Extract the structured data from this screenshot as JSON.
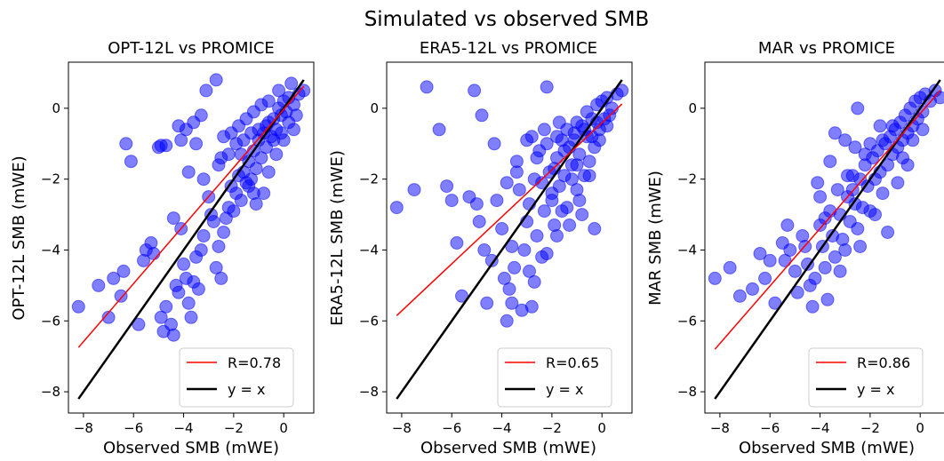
{
  "figure": {
    "suptitle": "Simulated vs observed SMB",
    "colors": {
      "points": "#0000ff",
      "fit_line": "#ff0000",
      "identity_line": "#000000"
    }
  },
  "chart_data": [
    {
      "type": "scatter",
      "title": "OPT-12L vs PROMICE",
      "xlabel": "Observed SMB (mWE)",
      "ylabel": "OPT-12L SMB (mWE)",
      "xlim": [
        -8.6,
        1.2
      ],
      "ylim": [
        -8.6,
        1.3
      ],
      "xticks": [
        -8,
        -6,
        -4,
        -2,
        0
      ],
      "yticks": [
        -8,
        -6,
        -4,
        -2,
        0
      ],
      "legend_position": "lower-right",
      "series": [
        {
          "name": "R=0.78",
          "kind": "line",
          "x": [
            -8.2,
            0.8
          ],
          "y": [
            -6.75,
            0.62
          ]
        },
        {
          "name": "y = x",
          "kind": "line",
          "x": [
            -8.2,
            0.8
          ],
          "y": [
            -8.2,
            0.8
          ]
        }
      ],
      "points": [
        [
          -8.2,
          -5.6
        ],
        [
          -7.4,
          -5.0
        ],
        [
          -7.0,
          -5.9
        ],
        [
          -6.8,
          -4.8
        ],
        [
          -6.5,
          -5.3
        ],
        [
          -6.4,
          -4.6
        ],
        [
          -6.3,
          -1.0
        ],
        [
          -6.1,
          -1.5
        ],
        [
          -5.8,
          -6.1
        ],
        [
          -5.6,
          -4.3
        ],
        [
          -5.5,
          -4.0
        ],
        [
          -5.3,
          -3.8
        ],
        [
          -5.2,
          -4.1
        ],
        [
          -5.0,
          -1.1
        ],
        [
          -4.9,
          -1.05
        ],
        [
          -4.7,
          -1.05
        ],
        [
          -4.9,
          -5.9
        ],
        [
          -4.8,
          -6.3
        ],
        [
          -4.7,
          -5.6
        ],
        [
          -4.5,
          -6.1
        ],
        [
          -4.4,
          -6.4
        ],
        [
          -4.3,
          -5.0
        ],
        [
          -4.2,
          -5.2
        ],
        [
          -4.1,
          -3.4
        ],
        [
          -4.0,
          -4.4
        ],
        [
          -3.9,
          -4.8
        ],
        [
          -3.8,
          -5.5
        ],
        [
          -3.7,
          -5.9
        ],
        [
          -3.6,
          -4.9
        ],
        [
          -3.5,
          -4.2
        ],
        [
          -3.4,
          -5.1
        ],
        [
          -3.3,
          -4.0
        ],
        [
          -3.2,
          -3.6
        ],
        [
          -3.0,
          -2.5
        ],
        [
          -2.9,
          -3.0
        ],
        [
          -2.8,
          -3.2
        ],
        [
          -2.7,
          -4.5
        ],
        [
          -2.6,
          -3.9
        ],
        [
          -2.5,
          -4.8
        ],
        [
          -2.4,
          -3.5
        ],
        [
          -2.3,
          -3.1
        ],
        [
          -2.2,
          -2.8
        ],
        [
          -2.1,
          -2.2
        ],
        [
          -2.0,
          -2.9
        ],
        [
          -1.9,
          -2.4
        ],
        [
          -1.8,
          -1.9
        ],
        [
          -1.7,
          -2.6
        ],
        [
          -1.6,
          -1.8
        ],
        [
          -1.5,
          -2.1
        ],
        [
          -1.4,
          -1.5
        ],
        [
          -1.3,
          -2.0
        ],
        [
          -1.2,
          -1.2
        ],
        [
          -1.1,
          -1.7
        ],
        [
          -1.0,
          -0.9
        ],
        [
          -0.9,
          -1.4
        ],
        [
          -0.8,
          -0.7
        ],
        [
          -0.7,
          -1.1
        ],
        [
          -0.6,
          -0.4
        ],
        [
          -0.5,
          -0.8
        ],
        [
          -0.4,
          -0.3
        ],
        [
          -0.3,
          -0.6
        ],
        [
          -0.2,
          0.0
        ],
        [
          -0.1,
          -0.2
        ],
        [
          0.0,
          0.2
        ],
        [
          0.1,
          -0.1
        ],
        [
          0.2,
          0.3
        ],
        [
          0.4,
          0.1
        ],
        [
          0.6,
          0.4
        ],
        [
          0.8,
          0.5
        ],
        [
          0.3,
          0.7
        ],
        [
          -0.2,
          0.5
        ],
        [
          -0.6,
          0.2
        ],
        [
          -0.9,
          0.1
        ],
        [
          -1.2,
          -0.1
        ],
        [
          -1.5,
          -0.3
        ],
        [
          -1.8,
          -0.5
        ],
        [
          -2.1,
          -0.7
        ],
        [
          -2.4,
          -0.8
        ],
        [
          -2.7,
          0.8
        ],
        [
          -3.1,
          0.5
        ],
        [
          -3.3,
          -0.2
        ],
        [
          -3.6,
          -0.4
        ],
        [
          -3.9,
          -0.6
        ],
        [
          -4.2,
          -0.5
        ],
        [
          -4.1,
          -0.9
        ],
        [
          -3.5,
          -1.0
        ],
        [
          -2.5,
          -1.4
        ],
        [
          -2.2,
          -1.3
        ],
        [
          -1.9,
          -1.0
        ],
        [
          -1.6,
          -0.9
        ],
        [
          -1.3,
          -0.7
        ],
        [
          -1.0,
          -0.6
        ],
        [
          -0.7,
          -0.5
        ],
        [
          -0.4,
          -0.9
        ],
        [
          -0.1,
          -0.7
        ],
        [
          0.2,
          -0.4
        ],
        [
          0.5,
          -0.2
        ],
        [
          -0.8,
          -2.4
        ],
        [
          -1.1,
          -2.7
        ],
        [
          -1.4,
          -2.2
        ],
        [
          -3.2,
          -2.0
        ],
        [
          -3.8,
          -1.8
        ],
        [
          -4.4,
          -3.1
        ],
        [
          -2.6,
          -1.6
        ],
        [
          -1.7,
          -1.3
        ],
        [
          -1.2,
          -2.4
        ],
        [
          -0.6,
          -1.8
        ],
        [
          -0.3,
          -1.3
        ],
        [
          0.0,
          -0.9
        ],
        [
          0.4,
          -0.6
        ]
      ]
    },
    {
      "type": "scatter",
      "title": "ERA5-12L vs PROMICE",
      "xlabel": "Observed SMB (mWE)",
      "ylabel": "ERA5-12L SMB (mWE)",
      "xlim": [
        -8.6,
        1.2
      ],
      "ylim": [
        -8.6,
        1.3
      ],
      "xticks": [
        -8,
        -6,
        -4,
        -2,
        0
      ],
      "yticks": [
        -8,
        -6,
        -4,
        -2,
        0
      ],
      "legend_position": "lower-right",
      "series": [
        {
          "name": "R=0.65",
          "kind": "line",
          "x": [
            -8.2,
            0.8
          ],
          "y": [
            -5.85,
            0.12
          ]
        },
        {
          "name": "y = x",
          "kind": "line",
          "x": [
            -8.2,
            0.8
          ],
          "y": [
            -8.2,
            0.8
          ]
        }
      ],
      "points": [
        [
          -8.2,
          -2.8
        ],
        [
          -7.5,
          -2.3
        ],
        [
          -7.0,
          0.6
        ],
        [
          -6.5,
          -0.6
        ],
        [
          -6.2,
          -2.2
        ],
        [
          -6.0,
          -2.6
        ],
        [
          -5.8,
          -3.8
        ],
        [
          -5.6,
          -5.3
        ],
        [
          -5.3,
          -2.5
        ],
        [
          -5.1,
          0.5
        ],
        [
          -5.0,
          -2.7
        ],
        [
          -4.9,
          -3.2
        ],
        [
          -4.8,
          -0.2
        ],
        [
          -4.7,
          -4.0
        ],
        [
          -4.6,
          -5.5
        ],
        [
          -4.4,
          -4.3
        ],
        [
          -4.3,
          -1.0
        ],
        [
          -4.2,
          -2.6
        ],
        [
          -4.0,
          -3.4
        ],
        [
          -3.9,
          -4.8
        ],
        [
          -3.8,
          -6.0
        ],
        [
          -3.7,
          -5.1
        ],
        [
          -3.6,
          -3.9
        ],
        [
          -3.5,
          -4.5
        ],
        [
          -3.4,
          -1.5
        ],
        [
          -3.3,
          -2.3
        ],
        [
          -3.2,
          -5.7
        ],
        [
          -3.1,
          -4.0
        ],
        [
          -3.0,
          -3.2
        ],
        [
          -2.9,
          -4.6
        ],
        [
          -2.8,
          -5.6
        ],
        [
          -2.7,
          -2.0
        ],
        [
          -2.6,
          -3.6
        ],
        [
          -2.5,
          -1.2
        ],
        [
          -2.4,
          -4.2
        ],
        [
          -2.3,
          -2.9
        ],
        [
          -2.2,
          0.6
        ],
        [
          -2.1,
          -1.8
        ],
        [
          -2.0,
          -2.6
        ],
        [
          -1.9,
          -3.3
        ],
        [
          -1.8,
          -1.4
        ],
        [
          -1.7,
          -2.2
        ],
        [
          -1.6,
          -0.9
        ],
        [
          -1.5,
          -1.9
        ],
        [
          -1.4,
          -2.8
        ],
        [
          -1.3,
          -1.1
        ],
        [
          -1.2,
          -1.6
        ],
        [
          -1.1,
          -0.7
        ],
        [
          -1.0,
          -2.3
        ],
        [
          -0.9,
          -1.3
        ],
        [
          -0.8,
          -0.5
        ],
        [
          -0.7,
          -1.9
        ],
        [
          -0.6,
          -0.8
        ],
        [
          -0.5,
          -1.5
        ],
        [
          -0.4,
          -0.3
        ],
        [
          -0.3,
          -1.1
        ],
        [
          -0.2,
          0.1
        ],
        [
          -0.1,
          -0.6
        ],
        [
          0.0,
          0.2
        ],
        [
          0.1,
          -0.3
        ],
        [
          0.2,
          0.3
        ],
        [
          0.4,
          0.0
        ],
        [
          0.6,
          0.4
        ],
        [
          0.8,
          0.5
        ],
        [
          0.3,
          -0.2
        ],
        [
          -0.2,
          -0.4
        ],
        [
          -0.6,
          -0.1
        ],
        [
          -1.0,
          -0.4
        ],
        [
          -1.4,
          -0.6
        ],
        [
          -1.8,
          -0.8
        ],
        [
          -2.2,
          -1.0
        ],
        [
          -2.6,
          -1.4
        ],
        [
          -3.0,
          -0.9
        ],
        [
          -3.4,
          -1.8
        ],
        [
          -3.8,
          -2.1
        ],
        [
          -2.9,
          -2.7
        ],
        [
          -2.4,
          -2.1
        ],
        [
          -1.9,
          -1.7
        ],
        [
          -1.5,
          -1.2
        ],
        [
          -1.1,
          -0.9
        ],
        [
          -0.7,
          -0.6
        ],
        [
          -0.4,
          -0.8
        ],
        [
          -0.1,
          -0.9
        ],
        [
          0.2,
          -0.5
        ],
        [
          -1.3,
          -3.3
        ],
        [
          -1.8,
          -3.6
        ],
        [
          -2.2,
          -4.1
        ],
        [
          -0.9,
          -2.6
        ],
        [
          -0.5,
          -1.9
        ],
        [
          -1.0,
          -1.6
        ],
        [
          -3.6,
          -5.5
        ],
        [
          -2.7,
          -4.9
        ],
        [
          -2.0,
          -2.4
        ],
        [
          -1.6,
          -2.9
        ],
        [
          -1.2,
          -2.0
        ],
        [
          -0.3,
          -3.4
        ],
        [
          -0.8,
          -3.0
        ],
        [
          -1.7,
          -0.4
        ],
        [
          -2.3,
          -0.6
        ],
        [
          -2.8,
          -0.8
        ]
      ]
    },
    {
      "type": "scatter",
      "title": "MAR vs PROMICE",
      "xlabel": "Observed SMB (mWE)",
      "ylabel": "MAR SMB (mWE)",
      "xlim": [
        -8.6,
        1.2
      ],
      "ylim": [
        -8.6,
        1.3
      ],
      "xticks": [
        -8,
        -6,
        -4,
        -2,
        0
      ],
      "yticks": [
        -8,
        -6,
        -4,
        -2,
        0
      ],
      "legend_position": "lower-right",
      "series": [
        {
          "name": "R=0.86",
          "kind": "line",
          "x": [
            -8.2,
            0.8
          ],
          "y": [
            -6.8,
            0.5
          ]
        },
        {
          "name": "y = x",
          "kind": "line",
          "x": [
            -8.2,
            0.8
          ],
          "y": [
            -8.2,
            0.8
          ]
        }
      ],
      "points": [
        [
          -8.2,
          -4.8
        ],
        [
          -7.6,
          -4.5
        ],
        [
          -7.2,
          -5.3
        ],
        [
          -6.7,
          -5.1
        ],
        [
          -6.4,
          -4.1
        ],
        [
          -6.2,
          -4.8
        ],
        [
          -6.0,
          -4.3
        ],
        [
          -5.8,
          -5.5
        ],
        [
          -5.5,
          -3.8
        ],
        [
          -5.3,
          -3.3
        ],
        [
          -5.2,
          -4.0
        ],
        [
          -5.0,
          -4.6
        ],
        [
          -4.9,
          -5.2
        ],
        [
          -4.7,
          -3.6
        ],
        [
          -4.5,
          -4.4
        ],
        [
          -4.4,
          -5.0
        ],
        [
          -4.3,
          -5.6
        ],
        [
          -4.2,
          -4.8
        ],
        [
          -4.1,
          -2.1
        ],
        [
          -4.0,
          -3.3
        ],
        [
          -3.9,
          -3.9
        ],
        [
          -3.8,
          -4.5
        ],
        [
          -3.7,
          -5.4
        ],
        [
          -3.6,
          -2.9
        ],
        [
          -3.5,
          -3.6
        ],
        [
          -3.4,
          -4.2
        ],
        [
          -3.3,
          -2.3
        ],
        [
          -3.2,
          -3.0
        ],
        [
          -3.1,
          -3.7
        ],
        [
          -3.0,
          -4.0
        ],
        [
          -2.9,
          -2.5
        ],
        [
          -2.8,
          -3.2
        ],
        [
          -2.7,
          -1.9
        ],
        [
          -2.6,
          -2.7
        ],
        [
          -2.5,
          -3.4
        ],
        [
          -2.4,
          -2.0
        ],
        [
          -2.3,
          -2.8
        ],
        [
          -2.2,
          -1.6
        ],
        [
          -2.1,
          -2.2
        ],
        [
          -2.0,
          -2.9
        ],
        [
          -1.9,
          -1.4
        ],
        [
          -1.8,
          -2.0
        ],
        [
          -1.7,
          -1.2
        ],
        [
          -1.6,
          -1.8
        ],
        [
          -1.5,
          -2.4
        ],
        [
          -1.4,
          -1.0
        ],
        [
          -1.3,
          -1.6
        ],
        [
          -1.2,
          -0.8
        ],
        [
          -1.1,
          -1.3
        ],
        [
          -1.0,
          -0.6
        ],
        [
          -0.9,
          -1.1
        ],
        [
          -0.8,
          -0.4
        ],
        [
          -0.7,
          -0.9
        ],
        [
          -0.6,
          -0.2
        ],
        [
          -0.5,
          -0.7
        ],
        [
          -0.4,
          0.0
        ],
        [
          -0.3,
          -0.5
        ],
        [
          -0.2,
          0.2
        ],
        [
          -0.1,
          -0.3
        ],
        [
          0.0,
          0.3
        ],
        [
          0.1,
          -0.1
        ],
        [
          0.2,
          0.4
        ],
        [
          0.4,
          0.2
        ],
        [
          0.6,
          0.5
        ],
        [
          0.8,
          0.3
        ],
        [
          -3.4,
          -0.7
        ],
        [
          -3.0,
          -0.9
        ],
        [
          -2.6,
          -1.1
        ],
        [
          -2.2,
          -1.3
        ],
        [
          -2.5,
          0.0
        ],
        [
          -2.9,
          -1.9
        ],
        [
          -3.6,
          -1.5
        ],
        [
          -4.0,
          -2.5
        ],
        [
          -1.3,
          -3.5
        ],
        [
          -1.8,
          -3.0
        ],
        [
          -2.4,
          -3.9
        ],
        [
          -3.2,
          -4.6
        ],
        [
          -0.5,
          -1.6
        ],
        [
          -0.9,
          -2.1
        ],
        [
          -1.5,
          -0.9
        ],
        [
          -1.1,
          -0.5
        ],
        [
          -0.7,
          -1.4
        ],
        [
          -0.3,
          -0.9
        ],
        [
          0.1,
          -0.6
        ],
        [
          -2.0,
          -1.0
        ],
        [
          -1.6,
          -0.5
        ],
        [
          -2.7,
          -2.3
        ],
        [
          -3.8,
          -3.1
        ],
        [
          -4.6,
          -3.9
        ],
        [
          -5.4,
          -4.3
        ]
      ]
    }
  ]
}
